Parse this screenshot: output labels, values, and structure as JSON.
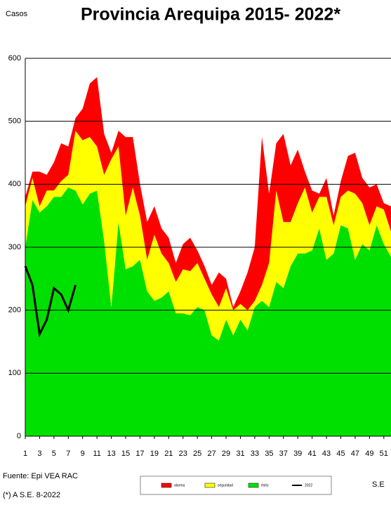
{
  "chart_data": {
    "type": "stacked_area",
    "title": "Provincia Arequipa  2015- 2022*",
    "y_label": "Casos",
    "x_label": "S.E",
    "notes": [
      "Fuente: Epi VEA RAC",
      "(*) A S.E. 8-2022"
    ],
    "x": [
      1,
      2,
      3,
      4,
      5,
      6,
      7,
      8,
      9,
      10,
      11,
      12,
      13,
      14,
      15,
      16,
      17,
      18,
      19,
      20,
      21,
      22,
      23,
      24,
      25,
      26,
      27,
      28,
      29,
      30,
      31,
      32,
      33,
      34,
      35,
      36,
      37,
      38,
      39,
      40,
      41,
      42,
      43,
      44,
      45,
      46,
      47,
      48,
      49,
      50,
      51,
      52
    ],
    "xlim": [
      1,
      52
    ],
    "xticks": [
      1,
      3,
      5,
      7,
      9,
      11,
      13,
      15,
      17,
      19,
      21,
      23,
      25,
      27,
      29,
      31,
      33,
      35,
      37,
      39,
      41,
      43,
      45,
      47,
      49,
      51
    ],
    "ylim": [
      0,
      600
    ],
    "yticks": [
      0,
      100,
      200,
      300,
      400,
      500,
      600
    ],
    "grid": true,
    "series": [
      {
        "name": "éxito",
        "color": "#00e000",
        "values": [
          300,
          375,
          355,
          365,
          380,
          380,
          395,
          390,
          368,
          385,
          390,
          310,
          205,
          340,
          265,
          270,
          280,
          230,
          215,
          220,
          230,
          195,
          195,
          192,
          205,
          200,
          160,
          152,
          185,
          160,
          185,
          168,
          205,
          215,
          205,
          245,
          235,
          270,
          290,
          290,
          295,
          330,
          280,
          290,
          335,
          330,
          280,
          305,
          295,
          335,
          305,
          285
        ]
      },
      {
        "name": "seguridad",
        "color": "#ffff00",
        "values": [
          65,
          35,
          10,
          25,
          10,
          25,
          20,
          95,
          102,
          90,
          70,
          105,
          235,
          120,
          85,
          125,
          70,
          50,
          105,
          70,
          45,
          50,
          70,
          70,
          70,
          50,
          65,
          53,
          50,
          40,
          25,
          32,
          10,
          25,
          70,
          145,
          105,
          70,
          80,
          105,
          60,
          50,
          100,
          45,
          45,
          60,
          105,
          65,
          40,
          30,
          55,
          40
        ]
      },
      {
        "name": "alarma",
        "color": "#ff0000",
        "values": [
          15,
          10,
          55,
          25,
          45,
          60,
          45,
          20,
          50,
          85,
          110,
          65,
          10,
          25,
          125,
          80,
          50,
          60,
          45,
          40,
          40,
          30,
          40,
          53,
          20,
          20,
          15,
          55,
          15,
          5,
          20,
          60,
          85,
          235,
          110,
          75,
          140,
          90,
          85,
          25,
          35,
          5,
          30,
          15,
          25,
          55,
          65,
          40,
          60,
          35,
          10,
          40
        ]
      },
      {
        "name": "2022",
        "color": "#000000",
        "type": "line",
        "values": [
          270,
          240,
          162,
          185,
          235,
          225,
          200,
          240,
          null,
          null,
          null,
          null,
          null,
          null,
          null,
          null,
          null,
          null,
          null,
          null,
          null,
          null,
          null,
          null,
          null,
          null,
          null,
          null,
          null,
          null,
          null,
          null,
          null,
          null,
          null,
          null,
          null,
          null,
          null,
          null,
          null,
          null,
          null,
          null,
          null,
          null,
          null,
          null,
          null,
          null,
          null,
          null
        ]
      }
    ]
  }
}
